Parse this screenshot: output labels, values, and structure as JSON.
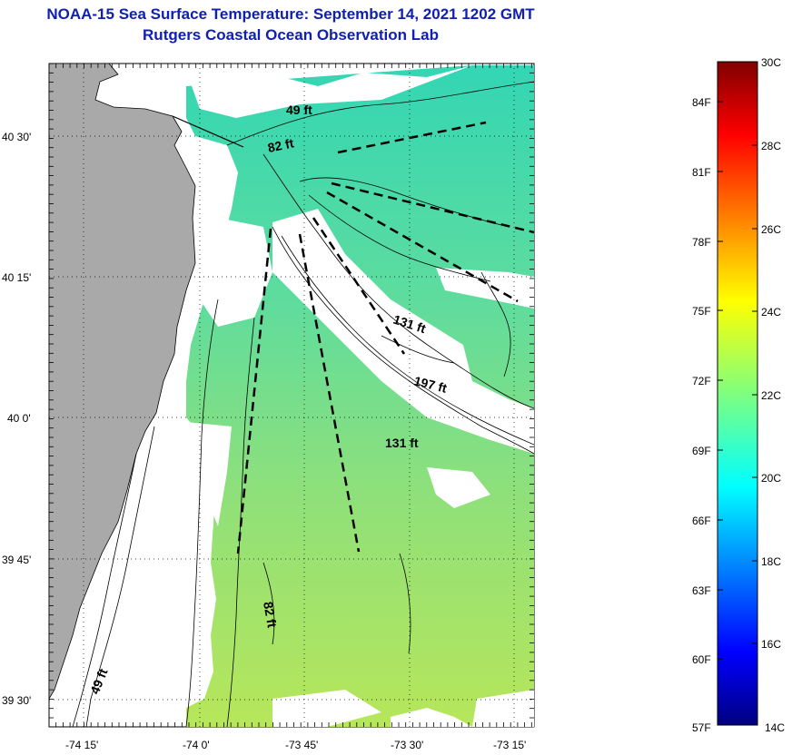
{
  "header": {
    "title": "NOAA-15 Sea Surface Temperature:  September 14, 2021 1202 GMT",
    "subtitle": "Rutgers Coastal Ocean Observation Lab"
  },
  "map": {
    "lat_labels": [
      "40 30'",
      "40 15'",
      "40 0'",
      "39 45'",
      "39 30'"
    ],
    "lon_labels": [
      "-74 15'",
      "-74 0'",
      "-73 45'",
      "-73 30'",
      "-73 15'"
    ],
    "depth_labels": [
      "49 ft",
      "82 ft",
      "131 ft",
      "197 ft",
      "131 ft",
      "82 ft",
      "49 ft"
    ],
    "colors": {
      "land": "#a9a9a9",
      "cloud": "#ffffff",
      "coast": "#000000"
    }
  },
  "colorbar": {
    "top_celsius": "30C",
    "top_fahrenheit": "",
    "fahrenheit_labels": [
      "84F",
      "81F",
      "78F",
      "75F",
      "72F",
      "69F",
      "66F",
      "63F",
      "60F",
      "57F"
    ],
    "celsius_labels": [
      "28C",
      "26C",
      "24C",
      "22C",
      "20C",
      "18C",
      "16C",
      "14C"
    ],
    "range_celsius": [
      14,
      30
    ]
  }
}
